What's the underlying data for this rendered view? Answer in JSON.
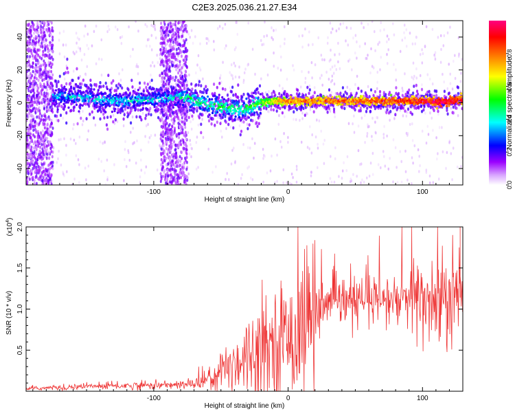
{
  "title": "C2E3.2025.036.21.27.E34",
  "chart_data": [
    {
      "type": "heatmap",
      "xlabel": "Height of straight line (km)",
      "ylabel": "Frequency (Hz)",
      "xlim": [
        -195,
        130
      ],
      "ylim": [
        -50,
        50
      ],
      "x_ticks": [
        -100,
        0,
        100
      ],
      "x_tick_labels": [
        "-100",
        "0",
        "100"
      ],
      "y_ticks": [
        -40,
        -20,
        0,
        20,
        40
      ],
      "y_tick_labels": [
        "-40",
        "-20",
        "0",
        "20",
        "40"
      ],
      "grid": false,
      "colorbar": {
        "label": "Normalized spectral amplitude",
        "range": [
          0,
          1
        ],
        "ticks": [
          0.0,
          0.2,
          0.4,
          0.6,
          0.8
        ],
        "tick_labels": [
          "0.0",
          "0.2",
          "0.4",
          "0.6",
          "0.8"
        ],
        "colors": [
          "#ffffff",
          "#9b00ff",
          "#0000ff",
          "#00ffff",
          "#00ff00",
          "#ffff00",
          "#ff8000",
          "#ff0000",
          "#ff0080"
        ]
      },
      "ridge": {
        "x": [
          -175,
          -150,
          -125,
          -100,
          -85,
          -75,
          -60,
          -45,
          -35,
          -20,
          -10,
          0,
          20,
          50,
          80,
          100,
          115,
          130
        ],
        "frequency": [
          4,
          3,
          1,
          2,
          3,
          3,
          -1,
          -3,
          -4,
          0,
          1,
          1,
          1,
          1,
          1,
          1,
          0,
          2
        ],
        "amplitude": [
          0.35,
          0.38,
          0.4,
          0.4,
          0.42,
          0.48,
          0.5,
          0.5,
          0.5,
          0.55,
          0.7,
          0.8,
          0.8,
          0.82,
          0.85,
          0.9,
          0.95,
          0.9
        ]
      },
      "noise_bands": [
        [
          -195,
          -175
        ],
        [
          -95,
          -75
        ]
      ]
    },
    {
      "type": "line",
      "xlabel": "Height of straight line (km)",
      "ylabel": "SNR (10 * v/v)",
      "y_multiplier": "(x10",
      "y_multiplier_exp": "4",
      "y_multiplier_close": ")",
      "xlim": [
        -195,
        130
      ],
      "ylim": [
        0,
        20000
      ],
      "x_ticks": [
        -100,
        0,
        100
      ],
      "x_tick_labels": [
        "-100",
        "0",
        "100"
      ],
      "y_ticks": [
        5000,
        10000,
        15000,
        20000
      ],
      "y_tick_labels": [
        "0.5",
        "1.0",
        "1.5",
        "2.0"
      ],
      "grid": false,
      "color": "#ee3333",
      "envelope": {
        "x": [
          -195,
          -150,
          -110,
          -75,
          -60,
          -50,
          -40,
          -30,
          -20,
          -10,
          0,
          10,
          20,
          30,
          40,
          60,
          80,
          100,
          110,
          120,
          130
        ],
        "y": [
          300,
          600,
          700,
          800,
          1500,
          2500,
          3500,
          4500,
          5500,
          6000,
          6500,
          8000,
          10000,
          10500,
          10800,
          10900,
          11000,
          11100,
          11000,
          11000,
          11500
        ]
      },
      "spikes": [
        {
          "x": 128,
          "y": 20000
        }
      ]
    }
  ]
}
